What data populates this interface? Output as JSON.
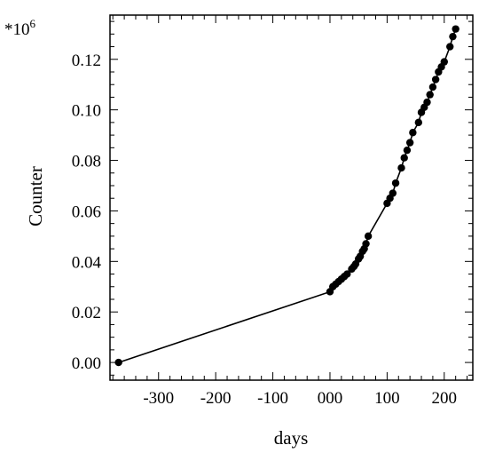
{
  "chart_data": {
    "type": "line",
    "title": "",
    "xlabel": "days",
    "ylabel": "Counter",
    "y_multiplier_label": "*10",
    "y_multiplier_exponent": "6",
    "xlim": [
      -385,
      250
    ],
    "ylim": [
      -0.007,
      0.1375
    ],
    "x_ticks": [
      -300,
      -200,
      -100,
      0,
      100,
      200
    ],
    "x_tick_labels": [
      "-300",
      "-200",
      "-100",
      "000",
      "100",
      "200"
    ],
    "y_ticks": [
      0.0,
      0.02,
      0.04,
      0.06,
      0.08,
      0.1,
      0.12
    ],
    "y_tick_labels": [
      "0.00",
      "0.02",
      "0.04",
      "0.06",
      "0.08",
      "0.10",
      "0.12"
    ],
    "grid": false,
    "legend": "none",
    "colors": {
      "line": "#000000",
      "marker": "#000000"
    },
    "series": [
      {
        "x": [
          -370,
          0,
          5,
          10,
          15,
          20,
          25,
          30,
          38,
          42,
          45,
          50,
          53,
          57,
          60,
          63,
          67,
          100,
          105,
          110,
          115,
          125,
          130,
          135,
          140,
          145,
          155,
          160,
          165,
          170,
          175,
          180,
          185,
          190,
          195,
          200,
          210,
          215,
          220
        ],
        "y": [
          0.0,
          0.028,
          0.03,
          0.031,
          0.032,
          0.033,
          0.034,
          0.035,
          0.037,
          0.038,
          0.039,
          0.041,
          0.042,
          0.044,
          0.045,
          0.047,
          0.05,
          0.063,
          0.065,
          0.067,
          0.071,
          0.077,
          0.081,
          0.084,
          0.087,
          0.091,
          0.095,
          0.099,
          0.101,
          0.103,
          0.106,
          0.109,
          0.112,
          0.115,
          0.117,
          0.119,
          0.125,
          0.129,
          0.132
        ]
      }
    ]
  }
}
